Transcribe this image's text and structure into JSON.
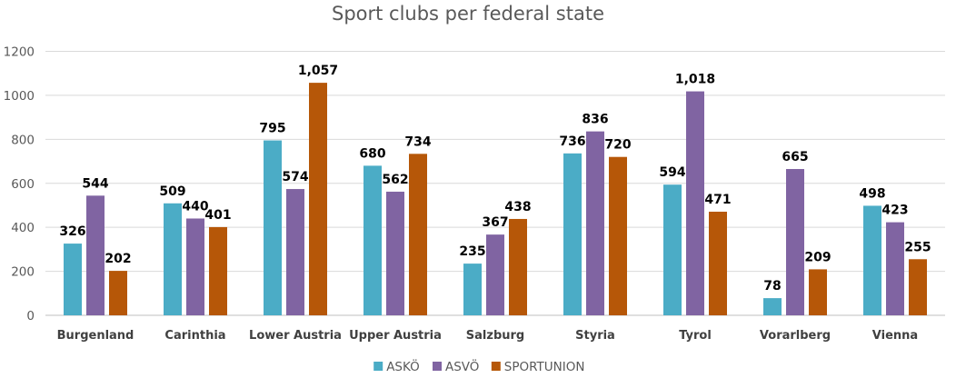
{
  "chart_data": {
    "type": "bar",
    "title": "Sport clubs per federal state",
    "xlabel": "",
    "ylabel": "",
    "ylim": [
      0,
      1200
    ],
    "yticks": [
      0,
      200,
      400,
      600,
      800,
      1000,
      1200
    ],
    "ytick_labels": [
      "0",
      "200",
      "400",
      "600",
      "800",
      "1000",
      "1200"
    ],
    "grid": true,
    "legend_position": "bottom",
    "categories": [
      "Burgenland",
      "Carinthia",
      "Lower Austria",
      "Upper Austria",
      "Salzburg",
      "Styria",
      "Tyrol",
      "Vorarlberg",
      "Vienna"
    ],
    "series": [
      {
        "name": "ASKÖ",
        "color": "#4bacc6",
        "values": [
          326,
          509,
          795,
          680,
          235,
          736,
          594,
          78,
          498
        ],
        "labels": [
          "326",
          "509",
          "795",
          "680",
          "235",
          "736",
          "594",
          "78",
          "498"
        ]
      },
      {
        "name": "ASVÖ",
        "color": "#8064a2",
        "values": [
          544,
          440,
          574,
          562,
          367,
          836,
          1018,
          665,
          423
        ],
        "labels": [
          "544",
          "440",
          "574",
          "562",
          "367",
          "836",
          "1,018",
          "665",
          "423"
        ]
      },
      {
        "name": "SPORTUNION",
        "color": "#b65708",
        "values": [
          202,
          401,
          1057,
          734,
          438,
          720,
          471,
          209,
          255
        ],
        "labels": [
          "202",
          "401",
          "1,057",
          "734",
          "438",
          "720",
          "471",
          "209",
          "255"
        ]
      }
    ]
  }
}
